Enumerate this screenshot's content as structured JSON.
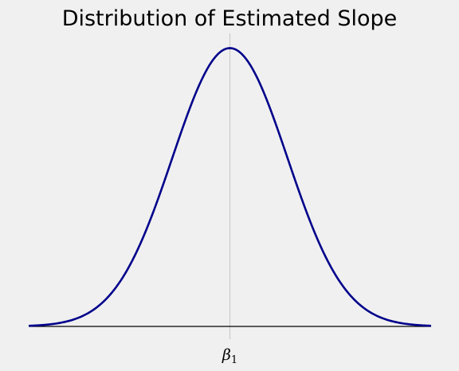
{
  "chart_data": {
    "type": "line",
    "title": "Distribution of Estimated Slope",
    "xlabel": "",
    "ylabel": "",
    "x_ticks": [
      {
        "value": 0,
        "label": "β",
        "subscript": "1"
      }
    ],
    "xlim": [
      -3.5,
      3.5
    ],
    "ylim": [
      0,
      0.42
    ],
    "grid": true,
    "series": [
      {
        "distribution": "normal",
        "mean": 0,
        "sd": 1,
        "color": "#00008b",
        "x": [
          -3.5,
          -3.0,
          -2.5,
          -2.0,
          -1.5,
          -1.0,
          -0.5,
          0.0,
          0.5,
          1.0,
          1.5,
          2.0,
          2.5,
          3.0,
          3.5
        ],
        "y": [
          0.0009,
          0.0044,
          0.0175,
          0.054,
          0.1295,
          0.242,
          0.3521,
          0.3989,
          0.3521,
          0.242,
          0.1295,
          0.054,
          0.0175,
          0.0044,
          0.0009
        ]
      }
    ],
    "colors": {
      "background": "#f0f0f0",
      "curve": "#00008b",
      "baseline": "#000000",
      "grid": "#cbcbcb"
    }
  }
}
